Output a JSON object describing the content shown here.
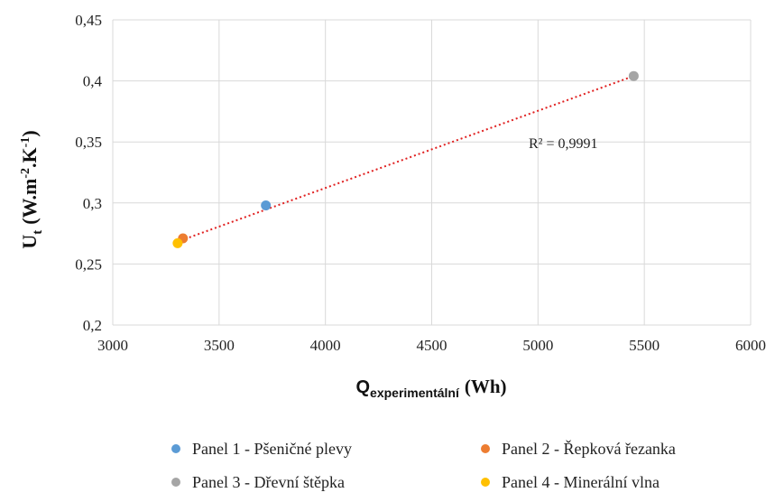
{
  "chart_data": {
    "type": "scatter",
    "xlim": [
      3000,
      6000
    ],
    "ylim": [
      0.2,
      0.45
    ],
    "x_ticks": [
      3000,
      3500,
      4000,
      4500,
      5000,
      5500,
      6000
    ],
    "y_ticks": [
      0.2,
      0.25,
      0.3,
      0.35,
      0.4,
      0.45
    ],
    "x_tick_labels": [
      "3000",
      "3500",
      "4000",
      "4500",
      "5000",
      "5500",
      "6000"
    ],
    "y_tick_labels": [
      "0,2",
      "0,25",
      "0,3",
      "0,35",
      "0,4",
      "0,45"
    ],
    "grid": true,
    "xlabel": {
      "main": "Q",
      "sub": "experimentální",
      "unit": "(Wh)"
    },
    "ylabel": {
      "main": "U",
      "sub": "t",
      "unit_pre": "(W.m",
      "exp1": "-2",
      "mid": ".K",
      "exp2": "-1",
      "unit_post": ")"
    },
    "series": [
      {
        "name": "Panel 1 - Pšeničné plevy",
        "color": "#5b9bd5",
        "x": 3720,
        "y": 0.298
      },
      {
        "name": "Panel 2 - Řepková řezanka",
        "color": "#ed7d31",
        "x": 3330,
        "y": 0.271
      },
      {
        "name": "Panel 3 - Dřevní štěpka",
        "color": "#a5a5a5",
        "x": 5450,
        "y": 0.404
      },
      {
        "name": "Panel 4 - Minerální vlna",
        "color": "#ffc000",
        "x": 3305,
        "y": 0.267
      }
    ],
    "trendline": {
      "type": "linear",
      "color": "#e02020",
      "x": [
        3300,
        5450
      ],
      "y": [
        0.268,
        0.404
      ],
      "r2_label": "R² = 0,9991"
    },
    "legend_position": "bottom"
  }
}
